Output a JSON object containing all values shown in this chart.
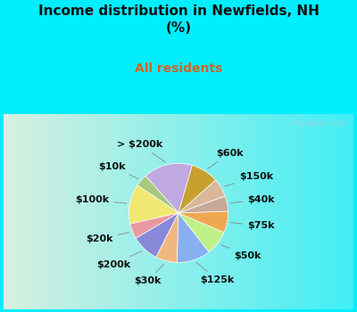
{
  "title": "Income distribution in Newfields, NH\n(%)",
  "subtitle": "All residents",
  "title_color": "#111111",
  "subtitle_color": "#cc6622",
  "bg_cyan": "#00eeff",
  "chart_bg_color": "#d8f0e0",
  "labels": [
    "> $200k",
    "$10k",
    "$100k",
    "$20k",
    "$200k",
    "$30k",
    "$125k",
    "$50k",
    "$75k",
    "$40k",
    "$150k",
    "$60k"
  ],
  "values": [
    16,
    4,
    13,
    5,
    9,
    7,
    11,
    8,
    7,
    5,
    6,
    9
  ],
  "colors": [
    "#c0a8e0",
    "#a8c880",
    "#f0e870",
    "#e898a0",
    "#8888d8",
    "#f0b880",
    "#88b0f0",
    "#c0f088",
    "#f0a850",
    "#c8a898",
    "#d8b898",
    "#c8a030"
  ],
  "start_angle": 74,
  "label_fontsize": 8.0,
  "watermark": "City-Data.com"
}
